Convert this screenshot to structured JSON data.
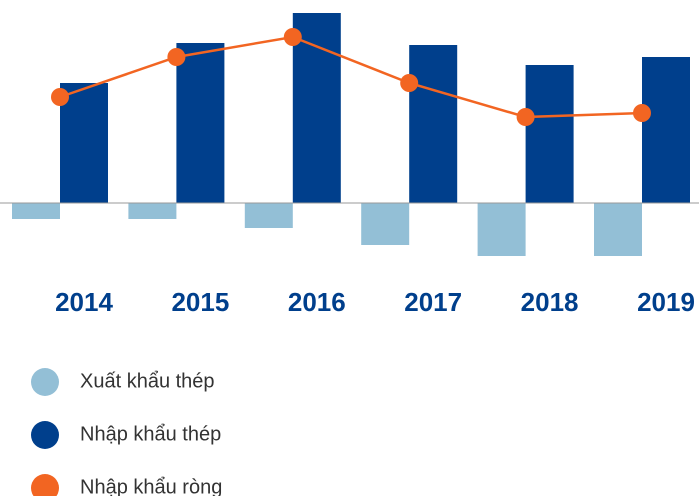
{
  "chart_data": {
    "type": "bar",
    "categories": [
      "2014",
      "2015",
      "2016",
      "2017",
      "2018",
      "2019"
    ],
    "series": [
      {
        "name": "Xuất khẩu thép",
        "color": "#93bfd6",
        "values": [
          -16,
          -16,
          -25,
          -42,
          -53,
          -53
        ]
      },
      {
        "name": "Nhập khẩu thép",
        "color": "#003f8c",
        "values": [
          120,
          160,
          190,
          158,
          138,
          146
        ]
      },
      {
        "name": "Nhập khẩu ròng",
        "color": "#f26522",
        "type": "line",
        "values": [
          106,
          146,
          166,
          120,
          86,
          90
        ]
      }
    ],
    "ylim": [
      -70,
      200
    ]
  }
}
